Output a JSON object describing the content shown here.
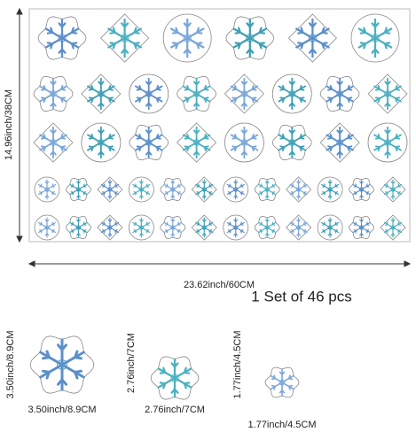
{
  "sheet": {
    "height_label": "14.96inch/38CM",
    "width_label": "23.62inch/60CM"
  },
  "set_label": "1 Set of 46 pcs",
  "samples": [
    {
      "height_label": "3.50inch/8.9CM",
      "width_label": "3.50inch/8.9CM"
    },
    {
      "height_label": "2.76inch/7CM",
      "width_label": "2.76inch/7CM"
    },
    {
      "height_label": "1.77inch/4.5CM",
      "width_label": "1.77inch/4.5CM"
    }
  ]
}
